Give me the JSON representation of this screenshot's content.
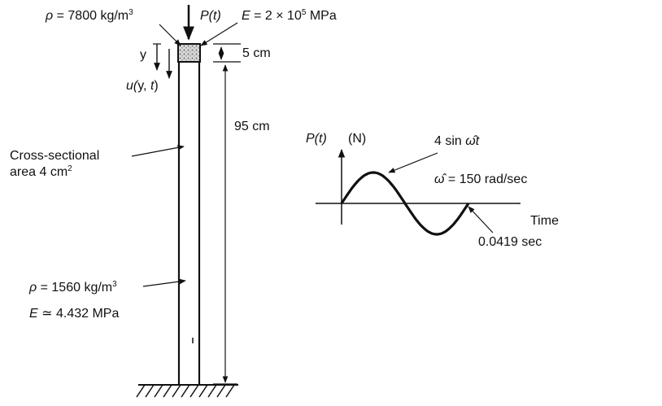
{
  "top_mass": {
    "density_symbol": "ρ",
    "density_text": " = 7800 kg/m",
    "density_exp": "3",
    "load": "P(t)",
    "modulus_symbol": "E",
    "modulus_text": " = 2 × 10",
    "modulus_exp": "5",
    "modulus_unit": " MPa",
    "height": "5 cm"
  },
  "coordinate": {
    "y_label": "y",
    "u_label_pre": "u(",
    "u_label_mid": "y, ",
    "u_label_t": "t",
    "u_label_post": ")"
  },
  "column": {
    "length": "95 cm",
    "area_line1": "Cross-sectional",
    "area_line2": "area 4 cm",
    "area_exp": "2",
    "density_symbol": "ρ",
    "density_text": " = 1560 kg/m",
    "density_exp": "3",
    "modulus_symbol": "E",
    "modulus_text": " ≃ 4.432 MPa"
  },
  "load_plot": {
    "ylabel_pre": "P(t)",
    "ylabel_unit": "(N)",
    "curve_label_pre": "4 sin ",
    "curve_label_omega": "ω̂",
    "curve_label_t": "t",
    "omega_symbol": "ω̂",
    "omega_text": " = 150 rad/sec",
    "xlabel": "Time",
    "period": "0.0419 sec"
  }
}
